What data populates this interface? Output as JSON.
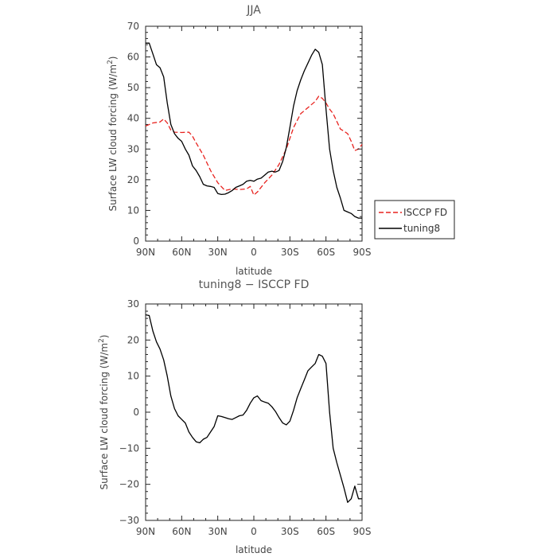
{
  "chart_data": [
    {
      "type": "line",
      "title": "JJA",
      "xlabel": "latitude",
      "ylabel": "Surface LW cloud forcing (W/m²)",
      "ylabel_parts": [
        "Surface LW cloud forcing (W/m",
        "2",
        ")"
      ],
      "xlim": [
        -90,
        90
      ],
      "ylim": [
        0,
        70
      ],
      "x_ticks": [
        -90,
        -60,
        -30,
        0,
        30,
        60,
        90
      ],
      "x_tick_labels": [
        "90N",
        "60N",
        "30N",
        "0",
        "30S",
        "60S",
        "90S"
      ],
      "y_ticks": [
        0,
        10,
        20,
        30,
        40,
        50,
        60,
        70
      ],
      "y_tick_labels": [
        "0",
        "10",
        "20",
        "30",
        "40",
        "50",
        "60",
        "70"
      ],
      "grid": false,
      "legend": {
        "placement": "outside-right",
        "entries": [
          "ISCCP FD",
          "tuning8"
        ]
      },
      "series": [
        {
          "name": "ISCCP FD",
          "color": "#e8221e",
          "dash": true,
          "x": [
            -90,
            -84,
            -78,
            -75,
            -72,
            -69,
            -66,
            -60,
            -54,
            -51,
            -48,
            -42,
            -36,
            -30,
            -24,
            -18,
            -12,
            -6,
            -3,
            0,
            3,
            9,
            15,
            21,
            27,
            33,
            39,
            45,
            51,
            54,
            57,
            60,
            63,
            66,
            69,
            72,
            75,
            78,
            81,
            84,
            87,
            90
          ],
          "y": [
            37.5,
            38.5,
            38.8,
            39.8,
            38.5,
            36.2,
            35.5,
            35.4,
            35.5,
            34.2,
            32.0,
            28.0,
            23.0,
            19.0,
            16.5,
            17.0,
            16.8,
            17.0,
            17.8,
            15.0,
            16.0,
            19.0,
            21.5,
            25.0,
            30.0,
            37.0,
            41.5,
            43.5,
            45.5,
            47.2,
            46.5,
            45.0,
            43.0,
            41.5,
            39.0,
            36.5,
            35.8,
            35.0,
            32.5,
            29.5,
            30.0,
            31.5
          ]
        },
        {
          "name": "tuning8",
          "color": "#000000",
          "dash": false,
          "x": [
            -90,
            -87,
            -84,
            -81,
            -78,
            -75,
            -72,
            -69,
            -66,
            -63,
            -60,
            -57,
            -54,
            -51,
            -48,
            -45,
            -42,
            -39,
            -36,
            -33,
            -30,
            -27,
            -24,
            -21,
            -18,
            -15,
            -12,
            -9,
            -6,
            -3,
            0,
            3,
            6,
            9,
            12,
            15,
            18,
            21,
            24,
            27,
            30,
            33,
            36,
            39,
            42,
            45,
            48,
            51,
            54,
            57,
            60,
            63,
            66,
            69,
            72,
            75,
            78,
            81,
            84,
            87,
            90
          ],
          "y": [
            64.5,
            64.5,
            61.0,
            57.5,
            56.5,
            53.5,
            45.0,
            38.0,
            35.0,
            33.5,
            32.5,
            30.0,
            28.0,
            24.5,
            23.0,
            21.0,
            18.5,
            18.0,
            17.8,
            17.5,
            15.5,
            15.2,
            15.3,
            15.8,
            16.5,
            17.5,
            18.0,
            18.5,
            19.5,
            19.8,
            19.5,
            20.2,
            20.5,
            21.5,
            22.5,
            22.8,
            22.5,
            23.0,
            26.0,
            30.5,
            37.0,
            44.0,
            49.0,
            52.5,
            55.5,
            58.0,
            60.5,
            62.5,
            61.5,
            57.5,
            43.0,
            30.0,
            23.0,
            17.5,
            14.0,
            10.0,
            9.5,
            9.0,
            8.0,
            7.5,
            7.5
          ]
        }
      ]
    },
    {
      "type": "line",
      "title": "tuning8 − ISCCP FD",
      "xlabel": "latitude",
      "ylabel": "Surface LW cloud forcing (W/m²)",
      "ylabel_parts": [
        "Surface LW cloud forcing (W/m",
        "2",
        ")"
      ],
      "xlim": [
        -90,
        90
      ],
      "ylim": [
        -30,
        30
      ],
      "x_ticks": [
        -90,
        -60,
        -30,
        0,
        30,
        60,
        90
      ],
      "x_tick_labels": [
        "90N",
        "60N",
        "30N",
        "0",
        "30S",
        "60S",
        "90S"
      ],
      "y_ticks": [
        -30,
        -20,
        -10,
        0,
        10,
        20,
        30
      ],
      "y_tick_labels": [
        "−30",
        "−20",
        "−10",
        "0",
        "10",
        "20",
        "30"
      ],
      "grid": false,
      "series": [
        {
          "color": "#000000",
          "dash": false,
          "x": [
            -90,
            -87,
            -84,
            -81,
            -78,
            -75,
            -72,
            -69,
            -66,
            -63,
            -60,
            -57,
            -54,
            -51,
            -48,
            -45,
            -42,
            -39,
            -36,
            -33,
            -30,
            -27,
            -24,
            -21,
            -18,
            -15,
            -12,
            -9,
            -6,
            -3,
            0,
            3,
            6,
            9,
            12,
            15,
            18,
            21,
            24,
            27,
            30,
            33,
            36,
            39,
            42,
            45,
            48,
            51,
            54,
            57,
            60,
            63,
            66,
            69,
            72,
            75,
            78,
            81,
            84,
            87,
            90
          ],
          "y": [
            27.0,
            26.8,
            22.5,
            19.5,
            17.5,
            14.5,
            10.0,
            4.5,
            1.0,
            -1.0,
            -2.0,
            -3.0,
            -5.5,
            -7.0,
            -8.2,
            -8.5,
            -7.5,
            -7.0,
            -5.5,
            -4.0,
            -1.0,
            -1.2,
            -1.5,
            -1.8,
            -2.0,
            -1.5,
            -1.0,
            -0.8,
            0.5,
            2.5,
            4.0,
            4.5,
            3.2,
            2.8,
            2.5,
            1.5,
            0.2,
            -1.5,
            -3.0,
            -3.5,
            -2.5,
            0.5,
            4.0,
            6.5,
            9.0,
            11.5,
            12.5,
            13.5,
            16.0,
            15.5,
            13.5,
            0.0,
            -10.0,
            -14.0,
            -17.5,
            -21.0,
            -25.0,
            -24.0,
            -20.5,
            -24.0,
            -24.0
          ]
        }
      ]
    }
  ]
}
